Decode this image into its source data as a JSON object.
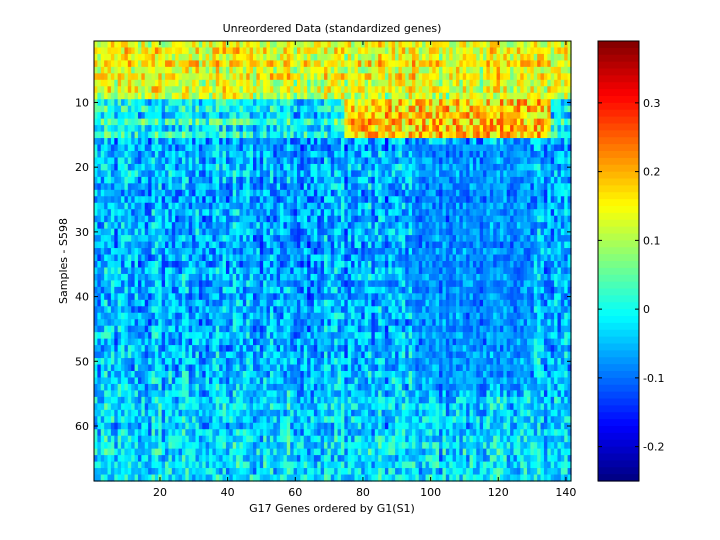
{
  "chart_data": {
    "type": "heatmap",
    "title": "Unreordered Data (standardized genes)",
    "xlabel": "G17 Genes ordered by G1(S1)",
    "ylabel": "Samples - S598",
    "n_cols": 141,
    "n_rows": 68,
    "xlim": [
      0.5,
      141.5
    ],
    "ylim": [
      0.5,
      68.5
    ],
    "xticks": [
      20,
      40,
      60,
      80,
      100,
      120,
      140
    ],
    "yticks": [
      10,
      20,
      30,
      40,
      50,
      60
    ],
    "colorbar": {
      "colormap": "jet",
      "clim": [
        -0.25,
        0.39
      ],
      "ticks": [
        -0.2,
        -0.1,
        0,
        0.1,
        0.2,
        0.3
      ],
      "tick_labels": [
        "-0.2",
        "-0.1",
        "0",
        "0.1",
        "0.2",
        "0.3"
      ]
    },
    "row_mean_values": [
      0.13,
      0.15,
      0.13,
      0.16,
      0.13,
      0.15,
      0.12,
      0.14,
      0.11,
      -0.02,
      0.0,
      -0.04,
      0.03,
      -0.03,
      0.0,
      -0.07,
      -0.07,
      -0.06,
      -0.06,
      -0.05,
      -0.05,
      -0.06,
      -0.06,
      -0.07,
      -0.07,
      -0.06,
      -0.06,
      -0.07,
      -0.06,
      -0.06,
      -0.06,
      -0.07,
      -0.07,
      -0.07,
      -0.07,
      -0.06,
      -0.06,
      -0.06,
      -0.06,
      -0.07,
      -0.06,
      -0.06,
      -0.06,
      -0.07,
      -0.06,
      -0.05,
      -0.06,
      -0.06,
      -0.05,
      -0.05,
      -0.06,
      -0.05,
      -0.04,
      -0.05,
      -0.05,
      -0.04,
      -0.03,
      -0.04,
      -0.03,
      -0.05,
      -0.04,
      -0.03,
      -0.02,
      -0.03,
      -0.04,
      -0.02,
      -0.03,
      -0.02
    ],
    "highlight_block": {
      "rows": [
        10,
        15
      ],
      "cols": [
        75,
        135
      ],
      "value": 0.18
    },
    "low_block": {
      "rows": [
        17,
        54
      ],
      "cols": [
        95,
        130
      ],
      "value": -0.1
    }
  }
}
